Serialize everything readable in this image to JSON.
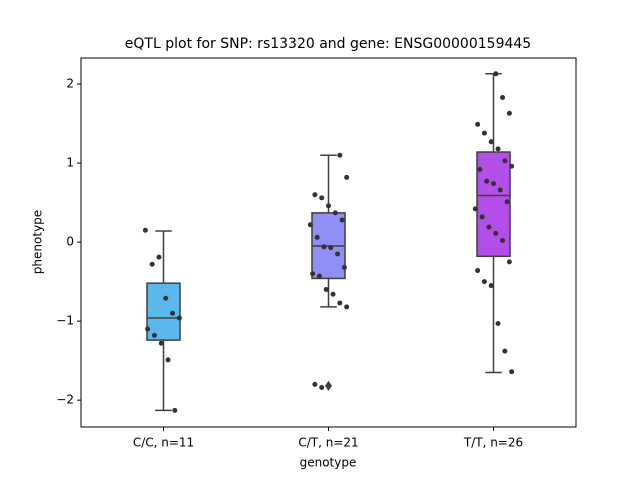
{
  "chart_data": {
    "type": "box",
    "title": "eQTL plot for SNP: rs13320 and gene: ENSG00000159445",
    "xlabel": "genotype",
    "ylabel": "phenotype",
    "categories": [
      "C/C, n=11",
      "C/T, n=21",
      "T/T, n=26"
    ],
    "ylim": [
      -2.34,
      2.33
    ],
    "yticks": [
      {
        "value": -2,
        "label": "−2"
      },
      {
        "value": -1,
        "label": "−1"
      },
      0,
      1,
      2
    ],
    "boxes": [
      {
        "color": "#5bb8ec",
        "q1": -1.24,
        "median": -0.96,
        "q3": -0.52,
        "whislo": -2.13,
        "whishi": 0.14,
        "fliers": [],
        "points": [
          0.15,
          -0.28,
          -0.19,
          -0.71,
          -0.9,
          -0.96,
          -1.1,
          -1.18,
          -1.28,
          -1.49,
          -2.13
        ]
      },
      {
        "color": "#8f8ff5",
        "q1": -0.46,
        "median": -0.05,
        "q3": 0.37,
        "whislo": -0.82,
        "whishi": 1.1,
        "fliers": [
          -1.82
        ],
        "points": [
          1.1,
          0.82,
          0.6,
          0.56,
          0.46,
          0.37,
          0.28,
          0.22,
          0.06,
          -0.06,
          -0.07,
          -0.15,
          -0.32,
          -0.4,
          -0.43,
          -0.6,
          -0.66,
          -0.77,
          -0.82,
          -1.8,
          -1.84
        ]
      },
      {
        "color": "#b34ee8",
        "q1": -0.18,
        "median": 0.59,
        "q3": 1.14,
        "whislo": -1.65,
        "whishi": 2.13,
        "fliers": [],
        "points": [
          2.13,
          1.83,
          1.63,
          1.49,
          1.38,
          1.27,
          1.18,
          1.03,
          0.96,
          0.92,
          0.77,
          0.74,
          0.66,
          0.51,
          0.42,
          0.32,
          0.19,
          0.11,
          0.02,
          -0.25,
          -0.36,
          -0.5,
          -0.55,
          -1.03,
          -1.38,
          -1.64
        ]
      }
    ]
  }
}
